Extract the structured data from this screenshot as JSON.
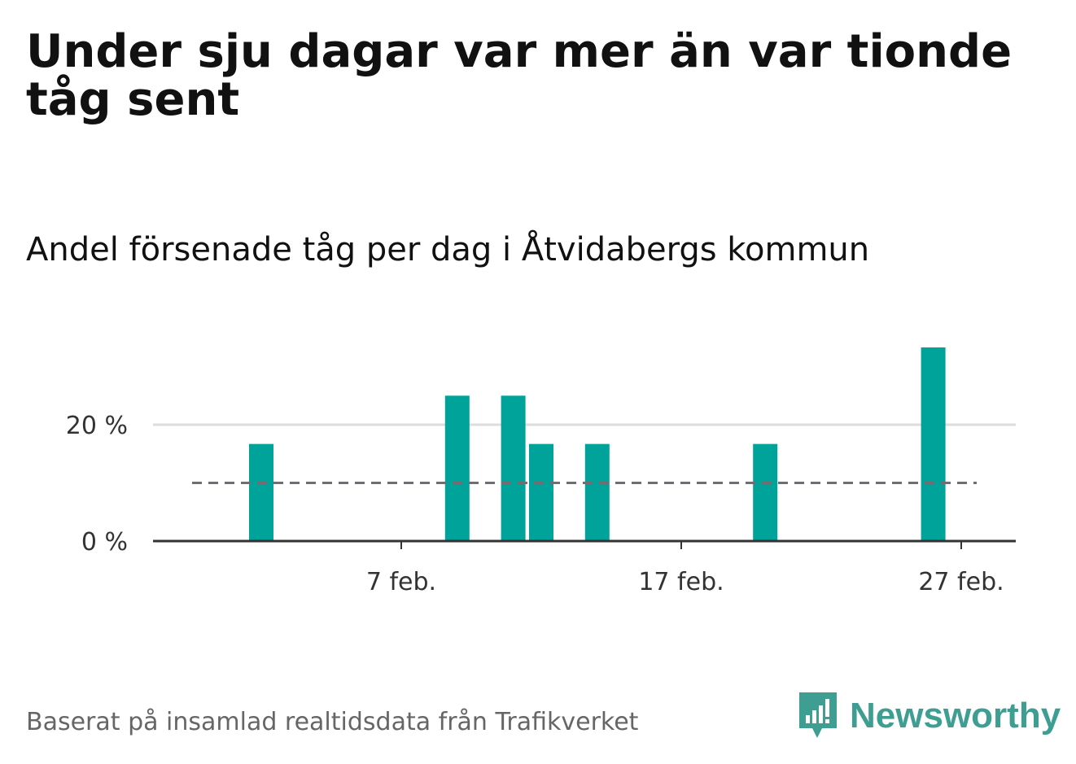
{
  "title": "Under sju dagar var mer än var tionde tåg sent",
  "subtitle": "Andel försenade tåg per dag i Åtvidabergs kommun",
  "footer": "Baserat på insamlad realtidsdata från Trafikverket",
  "brand": {
    "name": "Newsworthy",
    "color": "#3f9e92",
    "icon": "newsworthy-logo-icon"
  },
  "colors": {
    "bar": "#00a39a",
    "reference_line": "#6e6e73",
    "grid": "#dddddd",
    "axis": "#333333"
  },
  "chart_data": {
    "type": "bar",
    "x": [
      "2024-01-30",
      "2024-01-31",
      "2024-02-01",
      "2024-02-02",
      "2024-02-03",
      "2024-02-04",
      "2024-02-05",
      "2024-02-06",
      "2024-02-07",
      "2024-02-08",
      "2024-02-09",
      "2024-02-10",
      "2024-02-11",
      "2024-02-12",
      "2024-02-13",
      "2024-02-14",
      "2024-02-15",
      "2024-02-16",
      "2024-02-17",
      "2024-02-18",
      "2024-02-19",
      "2024-02-20",
      "2024-02-21",
      "2024-02-22",
      "2024-02-23",
      "2024-02-24",
      "2024-02-25",
      "2024-02-26",
      "2024-02-27",
      "2024-02-28",
      "2024-02-29"
    ],
    "values": [
      0,
      0,
      0,
      16.7,
      0,
      0,
      0,
      0,
      0,
      0,
      25,
      0,
      25,
      16.7,
      0,
      16.7,
      0,
      0,
      0,
      0,
      0,
      16.7,
      0,
      0,
      0,
      0,
      0,
      33.3,
      0,
      0,
      0
    ],
    "reference_line": 10,
    "xticks": [
      {
        "date": "2024-02-07",
        "label": "7 feb."
      },
      {
        "date": "2024-02-17",
        "label": "17 feb."
      },
      {
        "date": "2024-02-27",
        "label": "27 feb."
      }
    ],
    "yticks": [
      {
        "value": 0,
        "label": "0 %"
      },
      {
        "value": 20,
        "label": "20 %"
      }
    ],
    "ylim": [
      0,
      33.3
    ],
    "grid": true,
    "legend": "none"
  }
}
